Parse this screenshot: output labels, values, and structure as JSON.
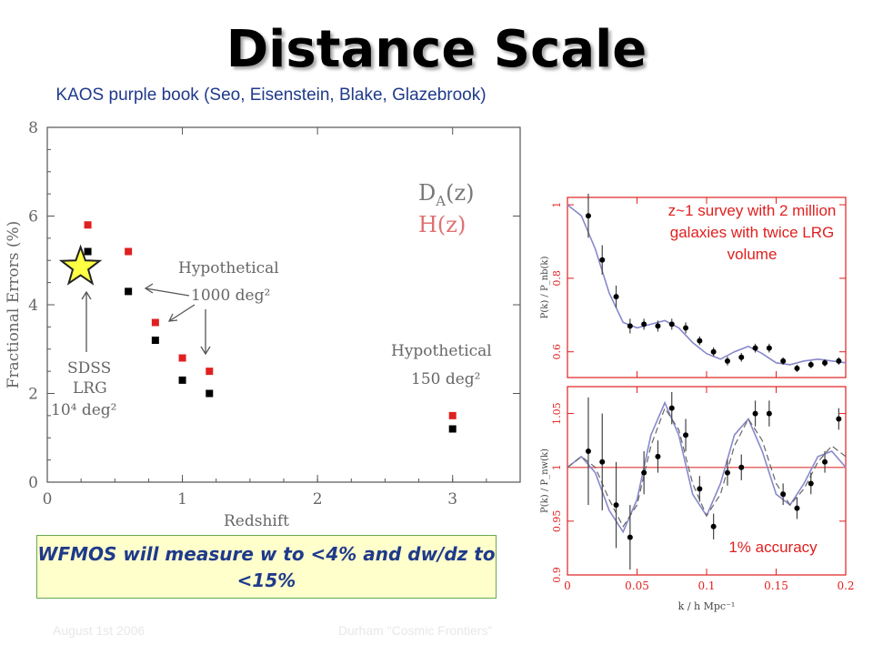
{
  "slide": {
    "title": "Distance Scale",
    "subtitle": "KAOS purple book (Seo, Eisenstein, Blake, Glazebrook)",
    "survey_note": "z~1 survey with 2 million galaxies with twice LRG volume",
    "accuracy_note": "1% accuracy",
    "wfmos_statement": "WFMOS will measure w to <4% and dw/dz to <15%",
    "footer_date": "August 1st 2006",
    "footer_venue": "Durham \"Cosmic Frontiers\"",
    "colors": {
      "title": "#000000",
      "subtitle": "#1f3a8a",
      "note_red": "#e02020",
      "box_fill": "#ffffcc",
      "box_border": "#6aa84f",
      "star": "#ffff44"
    }
  },
  "chart_data": [
    {
      "type": "scatter",
      "xlabel": "Redshift",
      "ylabel": "Fractional Errors (%)",
      "xlim": [
        0,
        3.5
      ],
      "ylim": [
        0,
        8
      ],
      "xticks": [
        "0",
        "1",
        "2",
        "3"
      ],
      "yticks": [
        "0",
        "2",
        "4",
        "6",
        "8"
      ],
      "series": [
        {
          "name": "D_A(z)",
          "color": "#000000",
          "x": [
            0.3,
            0.6,
            0.8,
            1.0,
            1.2,
            3.0
          ],
          "y": [
            5.2,
            4.3,
            3.2,
            2.3,
            2.0,
            1.2
          ]
        },
        {
          "name": "H(z)",
          "color": "#e02020",
          "x": [
            0.3,
            0.6,
            0.8,
            1.0,
            1.2,
            3.0
          ],
          "y": [
            5.8,
            5.2,
            3.6,
            2.8,
            2.5,
            1.5
          ]
        }
      ],
      "legend": {
        "placement": "top-right",
        "entries": [
          "D_A(z)",
          "H(z)"
        ]
      },
      "annotations": [
        {
          "text": "Hypothetical\n1000 deg²"
        },
        {
          "text": "Hypothetical\n150 deg²"
        },
        {
          "text": "SDSS\nLRG\n10⁴ deg²"
        }
      ],
      "highlight": {
        "shape": "star",
        "x": 0.3,
        "y": 4.85
      }
    },
    {
      "type": "line",
      "ylabel": "P(k) / P_nb(k)",
      "xlim": [
        0,
        0.2
      ],
      "ylim": [
        0.53,
        1.02
      ],
      "yticks": [
        "0.6",
        "0.8",
        "1"
      ],
      "points": {
        "x": [
          0.015,
          0.025,
          0.035,
          0.045,
          0.055,
          0.065,
          0.075,
          0.085,
          0.095,
          0.105,
          0.115,
          0.125,
          0.135,
          0.145,
          0.155,
          0.165,
          0.175,
          0.185,
          0.195
        ],
        "y": [
          0.97,
          0.85,
          0.75,
          0.67,
          0.675,
          0.67,
          0.675,
          0.665,
          0.63,
          0.6,
          0.575,
          0.585,
          0.61,
          0.61,
          0.575,
          0.555,
          0.565,
          0.57,
          0.575
        ],
        "err": [
          0.06,
          0.04,
          0.03,
          0.02,
          0.015,
          0.015,
          0.015,
          0.015,
          0.012,
          0.012,
          0.012,
          0.012,
          0.012,
          0.012,
          0.01,
          0.01,
          0.01,
          0.01,
          0.01
        ]
      },
      "model": {
        "x": [
          0.0,
          0.01,
          0.02,
          0.03,
          0.04,
          0.05,
          0.06,
          0.07,
          0.08,
          0.09,
          0.1,
          0.11,
          0.12,
          0.13,
          0.14,
          0.15,
          0.16,
          0.17,
          0.18,
          0.19,
          0.2
        ],
        "y": [
          1.0,
          0.97,
          0.88,
          0.76,
          0.68,
          0.665,
          0.675,
          0.685,
          0.665,
          0.625,
          0.595,
          0.58,
          0.6,
          0.615,
          0.595,
          0.57,
          0.565,
          0.575,
          0.58,
          0.575,
          0.57
        ]
      }
    },
    {
      "type": "line",
      "xlabel": "k / h Mpc⁻¹",
      "ylabel": "P(k) / P_nw(k)",
      "xlim": [
        0,
        0.2
      ],
      "ylim": [
        0.9,
        1.075
      ],
      "xticks": [
        "0",
        "0.05",
        "0.1",
        "0.15",
        "0.2"
      ],
      "yticks": [
        "0.9",
        "0.95",
        "1",
        "1.05"
      ],
      "points": {
        "x": [
          0.015,
          0.025,
          0.035,
          0.045,
          0.055,
          0.065,
          0.075,
          0.085,
          0.095,
          0.105,
          0.115,
          0.125,
          0.135,
          0.145,
          0.155,
          0.165,
          0.175,
          0.185,
          0.195
        ],
        "y": [
          1.015,
          1.005,
          0.965,
          0.935,
          0.995,
          1.01,
          1.055,
          1.03,
          0.98,
          0.945,
          0.995,
          1.0,
          1.05,
          1.05,
          0.975,
          0.962,
          0.985,
          1.005,
          1.045
        ],
        "err": [
          0.05,
          0.045,
          0.04,
          0.03,
          0.02,
          0.015,
          0.015,
          0.015,
          0.012,
          0.012,
          0.012,
          0.012,
          0.012,
          0.012,
          0.01,
          0.01,
          0.01,
          0.01,
          0.01
        ]
      },
      "reference_line": {
        "y": 1.0,
        "color": "#e86a6a"
      },
      "model": {
        "x": [
          0.0,
          0.01,
          0.02,
          0.03,
          0.04,
          0.05,
          0.06,
          0.07,
          0.08,
          0.09,
          0.1,
          0.11,
          0.12,
          0.13,
          0.14,
          0.15,
          0.16,
          0.17,
          0.18,
          0.19,
          0.2
        ],
        "y": [
          1.0,
          1.01,
          0.995,
          0.96,
          0.94,
          0.97,
          1.03,
          1.06,
          1.03,
          0.975,
          0.955,
          0.985,
          1.03,
          1.045,
          1.015,
          0.975,
          0.965,
          0.985,
          1.01,
          1.015,
          1.0
        ]
      },
      "model_dashed": {
        "x": [
          0.0,
          0.01,
          0.02,
          0.03,
          0.04,
          0.05,
          0.06,
          0.07,
          0.08,
          0.09,
          0.1,
          0.11,
          0.12,
          0.13,
          0.14,
          0.15,
          0.16,
          0.17,
          0.18,
          0.19,
          0.2
        ],
        "y": [
          1.0,
          1.01,
          1.0,
          0.97,
          0.945,
          0.965,
          1.02,
          1.055,
          1.035,
          0.985,
          0.955,
          0.975,
          1.02,
          1.045,
          1.025,
          0.985,
          0.965,
          0.98,
          1.005,
          1.02,
          1.01
        ]
      }
    }
  ]
}
